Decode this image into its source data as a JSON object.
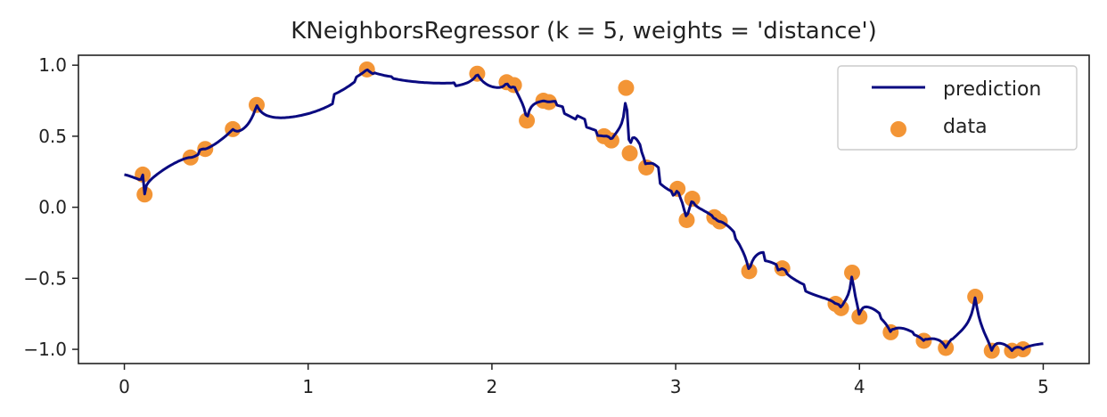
{
  "chart_data": {
    "type": "line+scatter",
    "title": "KNeighborsRegressor (k = 5, weights = 'distance')",
    "xlabel": "",
    "ylabel": "",
    "xlim": [
      -0.25,
      5.25
    ],
    "ylim": [
      -1.1,
      1.07
    ],
    "xticks": [
      0,
      1,
      2,
      3,
      4,
      5
    ],
    "xtick_labels": [
      "0",
      "1",
      "2",
      "3",
      "4",
      "5"
    ],
    "yticks": [
      1.0,
      0.5,
      0.0,
      -0.5,
      -1.0
    ],
    "ytick_labels": [
      "1.0",
      "0.5",
      "0.0",
      "−0.5",
      "−1.0"
    ],
    "grid": false,
    "legend": {
      "placement": "top-right",
      "entries": [
        "prediction",
        "data"
      ]
    },
    "series": [
      {
        "name": "prediction",
        "type": "line",
        "color": "#0a0a80",
        "x_range": [
          0,
          5
        ],
        "k": 5,
        "weights": "distance"
      },
      {
        "name": "data",
        "type": "scatter",
        "color": "#f39536",
        "x": [
          0.1,
          0.11,
          0.36,
          0.44,
          0.59,
          0.72,
          1.32,
          1.92,
          2.08,
          2.12,
          2.19,
          2.28,
          2.31,
          2.61,
          2.65,
          2.73,
          2.75,
          2.84,
          3.01,
          3.06,
          3.09,
          3.21,
          3.24,
          3.4,
          3.58,
          3.87,
          3.9,
          3.96,
          4.0,
          4.17,
          4.35,
          4.47,
          4.63,
          4.72,
          4.83,
          4.89
        ],
        "y": [
          0.23,
          0.09,
          0.35,
          0.41,
          0.55,
          0.72,
          0.97,
          0.94,
          0.88,
          0.86,
          0.61,
          0.75,
          0.74,
          0.5,
          0.47,
          0.84,
          0.38,
          0.28,
          0.13,
          -0.09,
          0.06,
          -0.07,
          -0.1,
          -0.45,
          -0.43,
          -0.68,
          -0.71,
          -0.46,
          -0.77,
          -0.88,
          -0.94,
          -0.99,
          -0.63,
          -1.01,
          -1.01,
          -1.0
        ]
      }
    ]
  }
}
